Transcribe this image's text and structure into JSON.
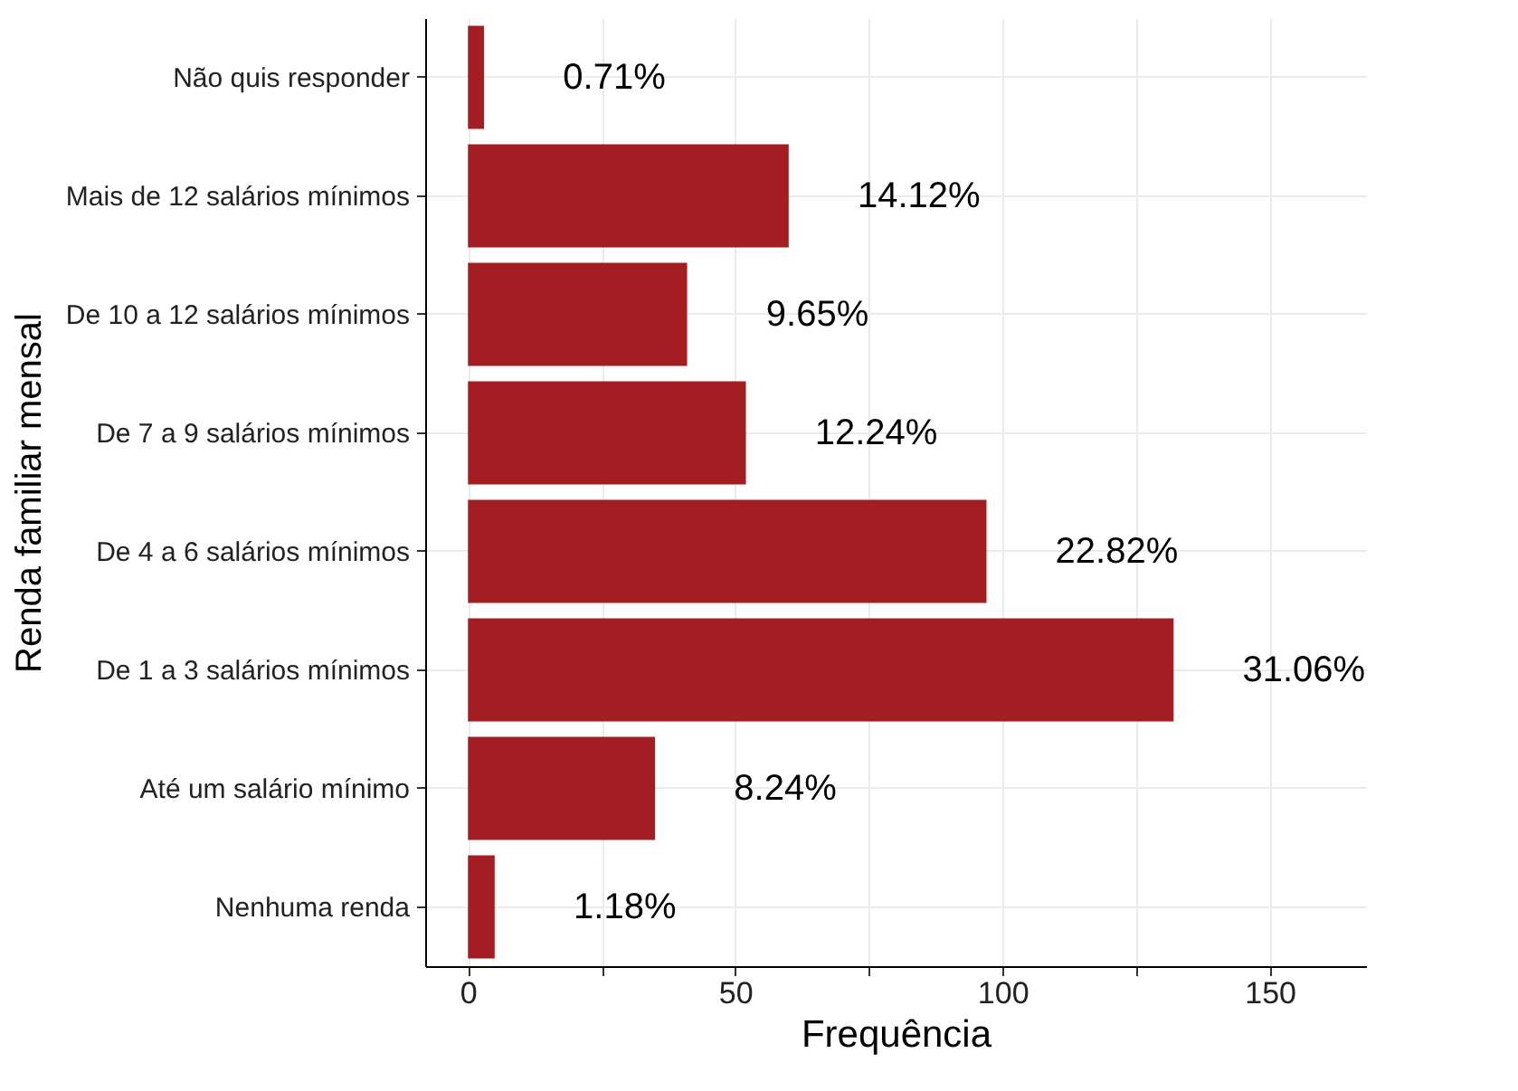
{
  "chart_data": {
    "type": "bar",
    "orientation": "horizontal",
    "xlabel": "Frequência",
    "ylabel": "Renda familiar mensal",
    "categories": [
      "Não quis responder",
      "Mais de 12 salários mínimos",
      "De 10 a 12 salários mínimos",
      "De 7 a 9 salários mínimos",
      "De 4 a 6 salários mínimos",
      "De 1 a 3 salários mínimos",
      "Até um salário mínimo",
      "Nenhuma renda"
    ],
    "values": [
      3,
      60,
      41,
      52,
      97,
      132,
      35,
      5
    ],
    "annotations": [
      {
        "text": "0.71%",
        "x": 3,
        "y": "Não quis responder"
      },
      {
        "text": "14.12%",
        "x": 60,
        "y": "Mais de 12 salários mínimos"
      },
      {
        "text": "9.65%",
        "x": 41,
        "y": "De 10 a 12 salários mínimos"
      },
      {
        "text": "12.24%",
        "x": 52,
        "y": "De 7 a 9 salários mínimos"
      },
      {
        "text": "22.82%",
        "x": 97,
        "y": "De 4 a 6 salários mínimos"
      },
      {
        "text": "31.06%",
        "x": 132,
        "y": "De 1 a 3 salários mínimos"
      },
      {
        "text": "8.24%",
        "x": 35,
        "y": "Até um salário mínimo"
      },
      {
        "text": "1.18%",
        "x": 5,
        "y": "Nenhuma renda"
      }
    ],
    "color": "#a31e23",
    "xlim": [
      -8,
      168
    ],
    "xticks": [
      0,
      {
        "value": 25,
        "label": null
      },
      50,
      {
        "value": 75,
        "label": null
      },
      100,
      {
        "value": 125,
        "label": null
      },
      150
    ],
    "grid": true
  }
}
